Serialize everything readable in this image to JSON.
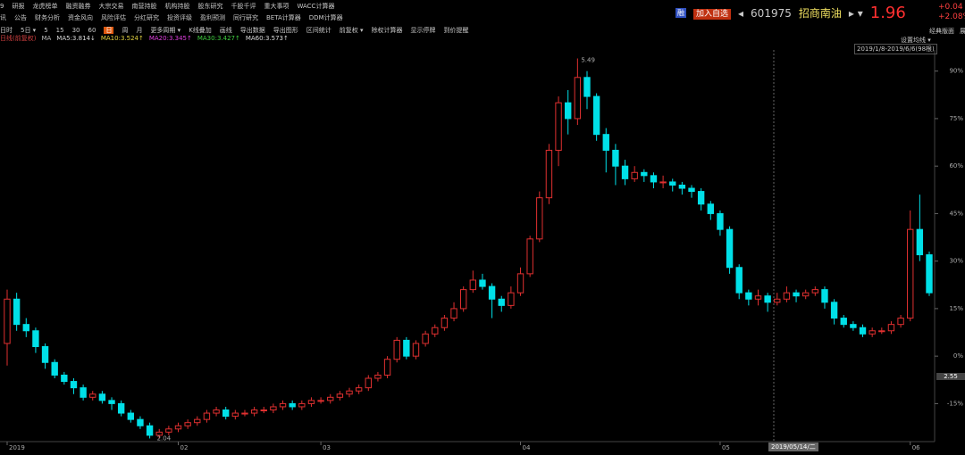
{
  "toolbar": {
    "row1": [
      "9",
      "研报",
      "龙虎榜单",
      "融资融券",
      "大宗交易",
      "南营持股",
      "机构持股",
      "股东研究",
      "千股千评",
      "重大事项",
      "WACC计算器"
    ],
    "row2": [
      "讯",
      "公告",
      "财务分析",
      "资金风向",
      "风险评估",
      "分红研究",
      "投资评级",
      "盈利预测",
      "同行研究",
      "BETA计算器",
      "DDM计算器"
    ],
    "row3": [
      "日时",
      "5日 ▾",
      "5",
      "15",
      "30",
      "60",
      "日",
      "周",
      "月",
      "更多周期 ▾",
      "K线叠加",
      "画线",
      "导出数据",
      "导出图形",
      "区间统计",
      "前复权 ▾",
      "除权计算器",
      "显示停牌",
      "到价提醒"
    ]
  },
  "quote": {
    "badge": "融",
    "add": "加入自选",
    "code": "601975",
    "name": "招商南油",
    "price": "1.96",
    "change": "+0.04",
    "change_pct": "+2.08%"
  },
  "layout_links": [
    "经典版面",
    "展开"
  ],
  "ma_legend": [
    {
      "text": "日线(前复权)",
      "color": "#d04040"
    },
    {
      "text": "MA",
      "color": "#bbbbbb"
    },
    {
      "text": "MA5:3.814↓",
      "color": "#dddddd"
    },
    {
      "text": "MA10:3.524↑",
      "color": "#e0d040"
    },
    {
      "text": "MA20:3.345↑",
      "color": "#e040e0"
    },
    {
      "text": "MA30:3.427↑",
      "color": "#40d040"
    },
    {
      "text": "MA60:3.573↑",
      "color": "#dddddd"
    }
  ],
  "settings": "设置均线 ▾",
  "range": "2019/1/8-2019/6/6(98根)",
  "cursor": {
    "price_label": "2.55",
    "date_label": "2019/05/14/二"
  },
  "annotations": {
    "max_label": "5.49",
    "min_label": "2.04"
  },
  "chart_data": {
    "type": "candlestick",
    "categories": [
      "2019",
      null,
      null,
      null,
      null,
      null,
      null,
      null,
      null,
      null,
      null,
      null,
      null,
      null,
      null,
      null,
      null,
      null,
      "02",
      null,
      null,
      null,
      null,
      null,
      null,
      null,
      null,
      null,
      null,
      null,
      null,
      null,
      null,
      "03",
      null,
      null,
      null,
      null,
      null,
      null,
      null,
      null,
      null,
      null,
      null,
      null,
      null,
      null,
      null,
      null,
      null,
      null,
      null,
      null,
      "04",
      null,
      null,
      null,
      null,
      null,
      null,
      null,
      null,
      null,
      null,
      null,
      null,
      null,
      null,
      null,
      null,
      null,
      null,
      null,
      null,
      "05",
      null,
      null,
      null,
      null,
      null,
      null,
      null,
      null,
      null,
      null,
      null,
      null,
      null,
      null,
      null,
      null,
      null,
      null,
      null,
      "06",
      null,
      null
    ],
    "open": [
      4,
      18,
      10,
      8,
      3,
      -2,
      -6,
      -8,
      -10,
      -13,
      -12,
      -14,
      -15,
      -18,
      -20,
      -22,
      -25,
      -24,
      -23,
      -22,
      -21,
      -20,
      -18,
      -17,
      -19,
      -18,
      -18,
      -17,
      -17,
      -16,
      -15,
      -16,
      -15,
      -14,
      -14,
      -13,
      -12,
      -11,
      -10,
      -7,
      -6,
      -1,
      5,
      0,
      4,
      7,
      9,
      12,
      15,
      21,
      24,
      22,
      18,
      16,
      20,
      26,
      37,
      50,
      65,
      80,
      75,
      88,
      82,
      70,
      65,
      60,
      56,
      58,
      57,
      55,
      55,
      54,
      53,
      52,
      48,
      45,
      40,
      28,
      20,
      18,
      19,
      17,
      18,
      20,
      19,
      20,
      21,
      17,
      12,
      10,
      9,
      7,
      8,
      8,
      10,
      12,
      40,
      32
    ],
    "high": [
      21,
      20,
      12,
      9,
      4,
      -1,
      -5,
      -7,
      -9,
      -11,
      -11,
      -13,
      -14,
      -17,
      -19,
      -21,
      -23,
      -22,
      -21,
      -20,
      -19,
      -17,
      -16,
      -16,
      -17,
      -17,
      -16,
      -16,
      -15,
      -14,
      -14,
      -14,
      -13,
      -13,
      -12,
      -11,
      -10,
      -9,
      -6,
      -5,
      0,
      6,
      6,
      5,
      8,
      10,
      13,
      17,
      22,
      27,
      26,
      23,
      19,
      22,
      28,
      38,
      52,
      67,
      82,
      84,
      94,
      90,
      83,
      72,
      67,
      62,
      60,
      59,
      58,
      57,
      56,
      55,
      54,
      53,
      49,
      46,
      41,
      29,
      21,
      21,
      20,
      20,
      22,
      21,
      21,
      22,
      22,
      18,
      13,
      11,
      10,
      9,
      9,
      11,
      13,
      46,
      51,
      33
    ],
    "low": [
      -3,
      8,
      6,
      1,
      -4,
      -7,
      -9,
      -12,
      -14,
      -14,
      -15,
      -17,
      -19,
      -21,
      -23,
      -26,
      -26,
      -25,
      -24,
      -23,
      -22,
      -21,
      -19,
      -20,
      -20,
      -19,
      -19,
      -18,
      -18,
      -17,
      -17,
      -17,
      -16,
      -15,
      -15,
      -14,
      -13,
      -12,
      -11,
      -8,
      -7,
      -2,
      -1,
      -1,
      3,
      6,
      8,
      11,
      14,
      20,
      21,
      12,
      14,
      15,
      19,
      25,
      36,
      48,
      60,
      70,
      73,
      78,
      68,
      58,
      54,
      54,
      55,
      55,
      53,
      53,
      52,
      51,
      50,
      46,
      43,
      38,
      26,
      18,
      16,
      16,
      14,
      16,
      17,
      17,
      18,
      19,
      15,
      10,
      9,
      8,
      6,
      6,
      7,
      7,
      9,
      11,
      30,
      19
    ],
    "close": [
      18,
      10,
      8,
      3,
      -2,
      -6,
      -8,
      -10,
      -13,
      -12,
      -14,
      -15,
      -18,
      -20,
      -22,
      -25,
      -24,
      -23,
      -22,
      -21,
      -20,
      -18,
      -17,
      -19,
      -18,
      -18,
      -17,
      -17,
      -16,
      -15,
      -16,
      -15,
      -14,
      -14,
      -13,
      -12,
      -11,
      -10,
      -7,
      -6,
      -1,
      5,
      0,
      4,
      7,
      9,
      12,
      15,
      21,
      24,
      22,
      18,
      16,
      20,
      26,
      37,
      50,
      65,
      80,
      75,
      88,
      82,
      70,
      65,
      60,
      56,
      58,
      57,
      55,
      55,
      54,
      53,
      52,
      48,
      45,
      40,
      28,
      20,
      18,
      19,
      17,
      18,
      20,
      19,
      20,
      21,
      17,
      12,
      10,
      9,
      7,
      8,
      8,
      10,
      12,
      40,
      32,
      20
    ],
    "colors": {
      "up": "#e03030",
      "down": "#00e0e8"
    },
    "ylim": [
      -27,
      104
    ],
    "yticks": [
      {
        "value": 90,
        "label": "90%"
      },
      {
        "value": 75,
        "label": "75%"
      },
      {
        "value": 60,
        "label": "60%"
      },
      {
        "value": 45,
        "label": "45%"
      },
      {
        "value": 30,
        "label": "30%"
      },
      {
        "value": 15,
        "label": "15%"
      },
      {
        "value": 0,
        "label": "0%"
      },
      {
        "value": -15,
        "label": "-15%"
      }
    ]
  }
}
